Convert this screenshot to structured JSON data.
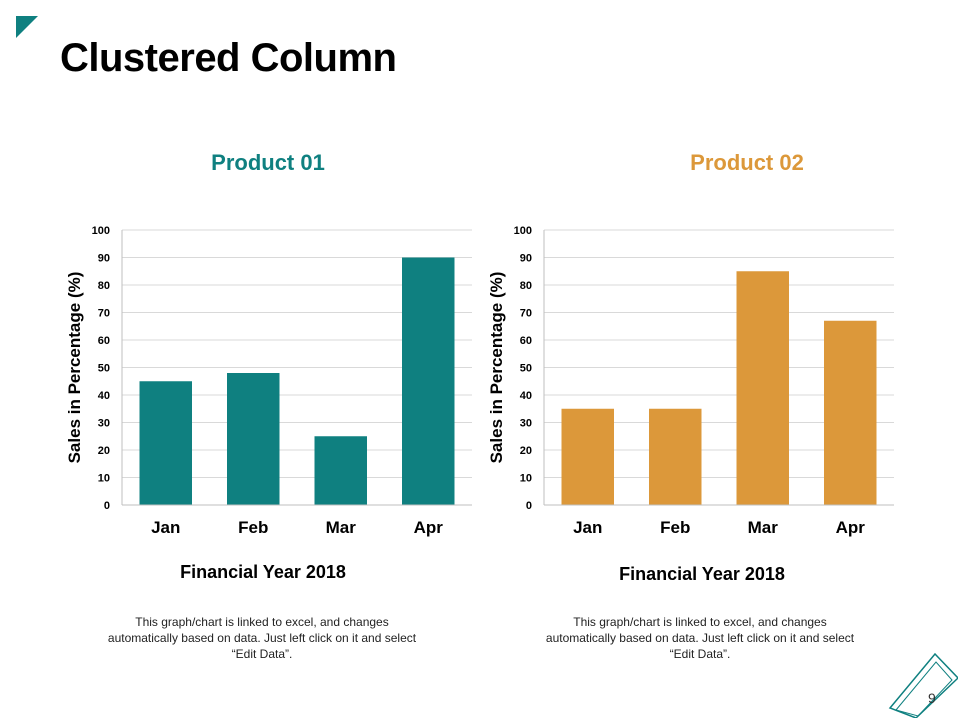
{
  "page": {
    "title": "Clustered Column",
    "page_number": "9",
    "accent_colors": {
      "teal": "#0f8080",
      "orange": "#dc983a"
    }
  },
  "charts": [
    {
      "title": "Product 01",
      "color": "#0f8080",
      "x_title": "Financial Year 2018",
      "note": "This graph/chart is linked to excel, and changes automatically based on data. Just left click on it and select “Edit Data”."
    },
    {
      "title": "Product 02",
      "color": "#dc983a",
      "x_title": "Financial Year 2018",
      "note": "This graph/chart is linked to excel, and changes automatically based on data. Just left click on it and select “Edit Data”."
    }
  ],
  "chart_data": [
    {
      "type": "bar",
      "title": "Product 01",
      "categories": [
        "Jan",
        "Feb",
        "Mar",
        "Apr"
      ],
      "values": [
        45,
        48,
        25,
        90
      ],
      "xlabel": "Financial Year 2018",
      "ylabel": "Sales in Percentage (%)",
      "ylim": [
        0,
        100
      ],
      "yticks": [
        0,
        10,
        20,
        30,
        40,
        50,
        60,
        70,
        80,
        90,
        100
      ],
      "grid": true,
      "color": "#0f8080"
    },
    {
      "type": "bar",
      "title": "Product 02",
      "categories": [
        "Jan",
        "Feb",
        "Mar",
        "Apr"
      ],
      "values": [
        35,
        35,
        85,
        67
      ],
      "xlabel": "Financial Year 2018",
      "ylabel": "Sales in Percentage (%)",
      "ylim": [
        0,
        100
      ],
      "yticks": [
        0,
        10,
        20,
        30,
        40,
        50,
        60,
        70,
        80,
        90,
        100
      ],
      "grid": true,
      "color": "#dc983a"
    }
  ]
}
